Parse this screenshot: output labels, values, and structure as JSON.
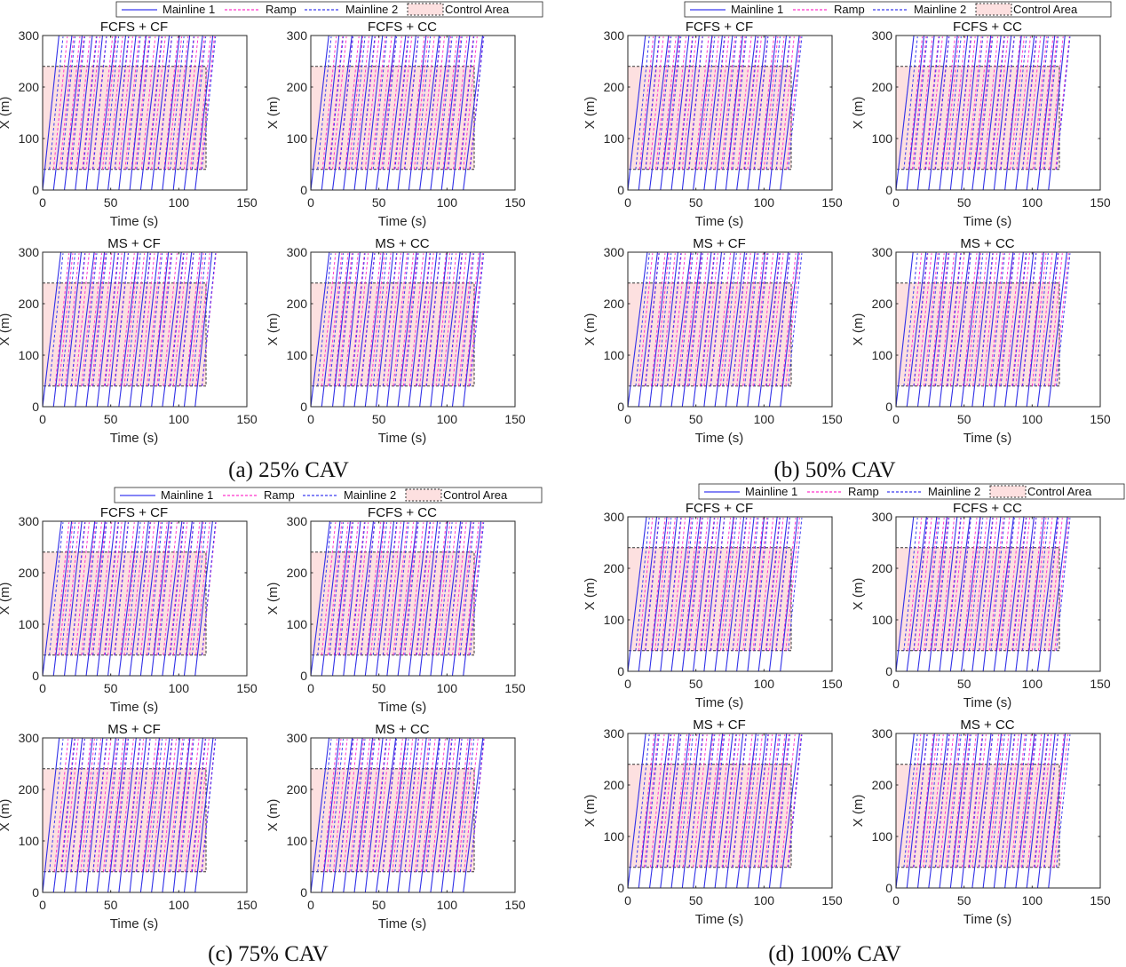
{
  "legend": {
    "items": [
      {
        "label": "Mainline 1",
        "style": "solid",
        "color": "#3b3bf0"
      },
      {
        "label": "Ramp",
        "style": "dashed",
        "color": "#ff33cc"
      },
      {
        "label": "Mainline 2",
        "style": "dashed",
        "color": "#3b3bf0"
      },
      {
        "label": "Control Area",
        "style": "patch",
        "color": "#fde0e0"
      }
    ]
  },
  "chart_data": [
    {
      "group": "a",
      "caption": "(a) 25% CAV",
      "subplots": [
        {
          "title": "FCFS + CF",
          "type": "line"
        },
        {
          "title": "FCFS + CC",
          "type": "line"
        },
        {
          "title": "MS + CF",
          "type": "line"
        },
        {
          "title": "MS + CC",
          "type": "line"
        }
      ]
    },
    {
      "group": "b",
      "caption": "(b) 50% CAV",
      "subplots": [
        {
          "title": "FCFS + CF",
          "type": "line"
        },
        {
          "title": "FCFS + CC",
          "type": "line"
        },
        {
          "title": "MS + CF",
          "type": "line"
        },
        {
          "title": "MS + CC",
          "type": "line"
        }
      ]
    },
    {
      "group": "c",
      "caption": "(c) 75% CAV",
      "subplots": [
        {
          "title": "FCFS + CF",
          "type": "line"
        },
        {
          "title": "FCFS + CC",
          "type": "line"
        },
        {
          "title": "MS + CF",
          "type": "line"
        },
        {
          "title": "MS + CC",
          "type": "line"
        }
      ]
    },
    {
      "group": "d",
      "caption": "(d) 100% CAV",
      "subplots": [
        {
          "title": "FCFS + CF",
          "type": "line"
        },
        {
          "title": "FCFS + CC",
          "type": "line"
        },
        {
          "title": "MS + CF",
          "type": "line"
        },
        {
          "title": "MS + CC",
          "type": "line"
        }
      ]
    }
  ],
  "axes": {
    "xlabel": "Time (s)",
    "ylabel": "X (m)",
    "xlim": [
      0,
      150
    ],
    "ylim": [
      0,
      300
    ],
    "xticks": [
      "0",
      "50",
      "100",
      "150"
    ],
    "yticks": [
      "0",
      "100",
      "200",
      "300"
    ],
    "control_area": {
      "t": [
        0,
        120
      ],
      "x": [
        40,
        240
      ]
    },
    "mainline1_entry_times": [
      0,
      8,
      16,
      24,
      32,
      40,
      48,
      56,
      64,
      72,
      80,
      88,
      96,
      104,
      112
    ],
    "mainline1_travel_time_to_300m": 12,
    "ramp_entry_times": [
      10,
      14,
      18,
      22,
      26,
      30,
      34,
      38,
      42,
      46,
      50,
      54,
      58,
      62,
      66,
      70,
      74,
      78,
      82,
      86,
      90,
      94,
      98,
      102,
      106,
      110,
      114,
      118
    ],
    "ramp_entry_position": 40,
    "mainline2_entry_times": [
      4,
      12,
      20,
      28,
      36,
      44,
      52,
      60,
      68,
      76,
      84,
      92,
      100,
      108,
      116
    ]
  }
}
